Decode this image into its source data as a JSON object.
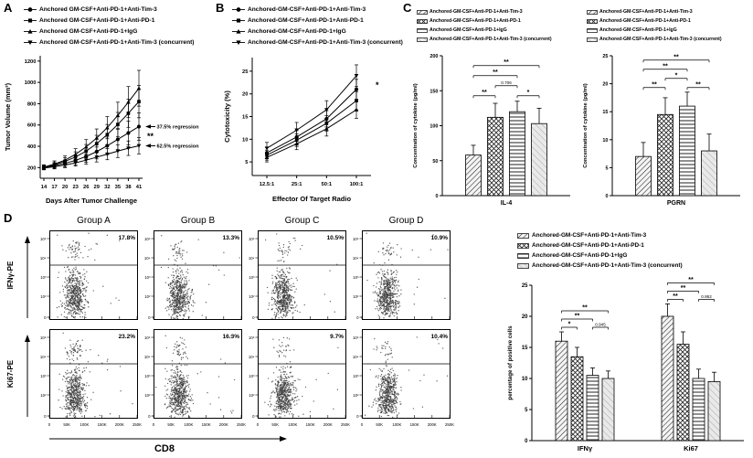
{
  "panels": {
    "a": {
      "label": "A"
    },
    "b": {
      "label": "B"
    },
    "c": {
      "label": "C"
    },
    "d": {
      "label": "D"
    }
  },
  "groups_a": [
    "Anchored GM-CSF+Anti-PD-1+Anti-Tim-3",
    "Anchored GM-CSF+Anti-PD-1+Anti-PD-1",
    "Anchored GM-CSF+Anti-PD-1+IgG",
    "Anchored GM-CSF+Anti-PD-1+Anti-Tim-3 (concurrent)"
  ],
  "groups": [
    "Anchored-GM-CSF+Anti-PD-1+Anti-Tim-3",
    "Anchored-GM-CSF+Anti-PD-1+Anti-PD-1",
    "Anchored-GM-CSF+Anti-PD-1+IgG",
    "Anchored-GM-CSF+Anti-PD-1+Anti-Tim-3 (concurrent)"
  ],
  "markers": [
    "circle",
    "square",
    "triangle-up",
    "triangle-down"
  ],
  "colors": {
    "ink": "#000000",
    "scatter_dot": "#3c3c3c",
    "background": "#ffffff"
  },
  "chart_data": [
    {
      "id": "tumor-volume",
      "type": "line",
      "title": "",
      "xlabel": "Days After Tumor Challenge",
      "ylabel": "Tumor Volume (mm³)",
      "x": [
        14,
        17,
        20,
        23,
        26,
        29,
        32,
        35,
        38,
        41
      ],
      "ylim": [
        100,
        1250
      ],
      "yticks": [
        200,
        400,
        600,
        800,
        1000,
        1200
      ],
      "series": [
        {
          "name": "Anchored GM-CSF+Anti-PD-1+Anti-Tim-3",
          "values": [
            200,
            218,
            240,
            268,
            305,
            350,
            405,
            465,
            525,
            585
          ],
          "errors": [
            18,
            24,
            32,
            42,
            55,
            68,
            82,
            96,
            112,
            128
          ]
        },
        {
          "name": "Anchored GM-CSF+Anti-PD-1+Anti-PD-1",
          "values": [
            200,
            226,
            258,
            300,
            355,
            425,
            510,
            605,
            710,
            820
          ],
          "errors": [
            20,
            27,
            36,
            48,
            62,
            78,
            95,
            113,
            132,
            152
          ]
        },
        {
          "name": "Anchored GM-CSF+Anti-PD-1+IgG",
          "values": [
            205,
            233,
            270,
            325,
            395,
            478,
            575,
            690,
            815,
            945
          ],
          "errors": [
            22,
            30,
            40,
            53,
            68,
            85,
            104,
            124,
            146,
            168
          ]
        },
        {
          "name": "Anchored GM-CSF+Anti-PD-1+Anti-Tim-3 (concurrent)",
          "values": [
            195,
            208,
            224,
            245,
            270,
            298,
            326,
            355,
            382,
            405
          ],
          "errors": [
            16,
            20,
            25,
            31,
            38,
            45,
            52,
            60,
            68,
            76
          ]
        }
      ],
      "annotations": [
        {
          "text": "37.5% regression",
          "arrow": true,
          "y": 585
        },
        {
          "text": "**",
          "arrow": false,
          "y": 495
        },
        {
          "text": "62.5% regression",
          "arrow": true,
          "y": 405
        }
      ]
    },
    {
      "id": "cytotoxicity",
      "type": "line",
      "title": "",
      "xlabel": "Effector Of Target Radio",
      "ylabel": "Cytotoxicity (%)",
      "x_categories": [
        "12.5:1",
        "25:1",
        "50:1",
        "100:1"
      ],
      "ylim": [
        2,
        28
      ],
      "yticks": [
        5,
        10,
        15,
        20,
        25
      ],
      "series": [
        {
          "name": "Anchored-GM-CSF+Anti-PD-1+Anti-Tim-3",
          "values": [
            7,
            10.5,
            14.5,
            21
          ],
          "errors": [
            1.2,
            1.5,
            1.8,
            2.2
          ]
        },
        {
          "name": "Anchored-GM-CSF+Anti-PD-1+Anti-PD-1",
          "values": [
            6.5,
            9.8,
            13.5,
            18.5
          ],
          "errors": [
            1.1,
            1.4,
            1.7,
            2
          ]
        },
        {
          "name": "Anchored-GM-CSF+Anti-PD-1+IgG",
          "values": [
            6,
            9,
            12.3,
            16.5
          ],
          "errors": [
            1,
            1.3,
            1.6,
            1.9
          ]
        },
        {
          "name": "Anchored-GM-CSF+Anti-PD-1+Anti-Tim-3 (concurrent)",
          "values": [
            8,
            12,
            16.5,
            24
          ],
          "errors": [
            1.3,
            1.7,
            2,
            2.4
          ]
        }
      ],
      "annotations": [
        {
          "text": "*",
          "arrow": false,
          "y": 22
        }
      ]
    },
    {
      "id": "cytokine-il4",
      "type": "bar",
      "title": "",
      "xlabel": "",
      "ylabel": "Concentration of cytokine (pg/ml)",
      "categories": [
        "IL-4"
      ],
      "ylim": [
        0,
        200
      ],
      "yticks": [
        0,
        50,
        100,
        150,
        200
      ],
      "series": [
        {
          "name": "Anchored-GM-CSF+Anti-PD-1+Anti-Tim-3",
          "values": [
            58
          ],
          "errors": [
            14
          ]
        },
        {
          "name": "Anchored-GM-CSF+Anti-PD-1+Anti-PD-1",
          "values": [
            112
          ],
          "errors": [
            20
          ]
        },
        {
          "name": "Anchored-GM-CSF+Anti-PD-1+IgG",
          "values": [
            120
          ],
          "errors": [
            15
          ]
        },
        {
          "name": "Anchored-GM-CSF+Anti-PD-1+Anti-Tim-3 (concurrent)",
          "values": [
            103
          ],
          "errors": [
            22
          ]
        }
      ],
      "sig": [
        {
          "cat": 0,
          "a": 0,
          "b": 1,
          "label": "**",
          "lv": 0
        },
        {
          "cat": 0,
          "a": 2,
          "b": 3,
          "label": "*",
          "lv": 0
        },
        {
          "cat": 0,
          "a": 1,
          "b": 2,
          "label": "0.706",
          "lv": 1
        },
        {
          "cat": 0,
          "a": 0,
          "b": 2,
          "label": "**",
          "lv": 2
        },
        {
          "cat": 0,
          "a": 0,
          "b": 3,
          "label": "**",
          "lv": 3
        }
      ]
    },
    {
      "id": "cytokine-pgrn",
      "type": "bar",
      "title": "",
      "xlabel": "",
      "ylabel": "Concentration of cytokine (pg/ml)",
      "categories": [
        "PGRN"
      ],
      "ylim": [
        0,
        25
      ],
      "yticks": [
        0,
        5,
        10,
        15,
        20,
        25
      ],
      "series": [
        {
          "name": "Anchored-GM-CSF+Anti-PD-1+Anti-Tim-3",
          "values": [
            7
          ],
          "errors": [
            2.5
          ]
        },
        {
          "name": "Anchored-GM-CSF+Anti-PD-1+Anti-PD-1",
          "values": [
            14.5
          ],
          "errors": [
            3
          ]
        },
        {
          "name": "Anchored-GM-CSF+Anti-PD-1+IgG",
          "values": [
            16
          ],
          "errors": [
            2.5
          ]
        },
        {
          "name": "Anchored-GM-CSF+Anti-PD-1+Anti-Tim-3 (concurrent)",
          "values": [
            8
          ],
          "errors": [
            3
          ]
        }
      ],
      "sig": [
        {
          "cat": 0,
          "a": 0,
          "b": 1,
          "label": "**",
          "lv": 0
        },
        {
          "cat": 0,
          "a": 2,
          "b": 3,
          "label": "**",
          "lv": 0
        },
        {
          "cat": 0,
          "a": 1,
          "b": 2,
          "label": "*",
          "lv": 1
        },
        {
          "cat": 0,
          "a": 0,
          "b": 2,
          "label": "**",
          "lv": 2
        },
        {
          "cat": 0,
          "a": 0,
          "b": 3,
          "label": "**",
          "lv": 3
        }
      ]
    },
    {
      "id": "flow-cytometry",
      "type": "scatter",
      "columns": [
        "Group A",
        "Group B",
        "Group C",
        "Group D"
      ],
      "rows": [
        {
          "ylabel": "IFNγ-PE",
          "percentages": [
            "17.8%",
            "13.3%",
            "10.5%",
            "10.9%"
          ]
        },
        {
          "ylabel": "Ki67-PE",
          "percentages": [
            "23.2%",
            "16.3%",
            "9.7%",
            "10.4%"
          ]
        }
      ],
      "xlabel": "CD8",
      "xticks": [
        "0",
        "50K",
        "100K",
        "150K",
        "200K",
        "250K"
      ],
      "yticks": [
        "0",
        "10²",
        "10³",
        "10⁴",
        "10⁵"
      ]
    },
    {
      "id": "positive-cells",
      "type": "bar",
      "title": "",
      "xlabel": "",
      "ylabel": "percentage of positive cells",
      "categories": [
        "IFNγ",
        "Ki67"
      ],
      "ylim": [
        0,
        25
      ],
      "yticks": [
        0,
        5,
        10,
        15,
        20,
        25
      ],
      "series": [
        {
          "name": "Anchored-GM-CSF+Anti-PD-1+Anti-Tim-3",
          "values": [
            16,
            20
          ],
          "errors": [
            1.5,
            2
          ]
        },
        {
          "name": "Anchored-GM-CSF+Anti-PD-1+Anti-PD-1",
          "values": [
            13.5,
            15.5
          ],
          "errors": [
            1.5,
            2
          ]
        },
        {
          "name": "Anchored-GM-CSF+Anti-PD-1+IgG",
          "values": [
            10.5,
            10
          ],
          "errors": [
            1.2,
            1.5
          ]
        },
        {
          "name": "Anchored-GM-CSF+Anti-PD-1+Anti-Tim-3 (concurrent)",
          "values": [
            10,
            9.5
          ],
          "errors": [
            1.2,
            1.5
          ]
        }
      ],
      "sig": [
        {
          "cat": 0,
          "a": 0,
          "b": 1,
          "label": "*",
          "lv": 0
        },
        {
          "cat": 0,
          "a": 2,
          "b": 3,
          "label": "0.945",
          "lv": 0
        },
        {
          "cat": 0,
          "a": 0,
          "b": 2,
          "label": "**",
          "lv": 1
        },
        {
          "cat": 0,
          "a": 0,
          "b": 3,
          "label": "**",
          "lv": 2
        },
        {
          "cat": 1,
          "a": 0,
          "b": 1,
          "label": "**",
          "lv": 0
        },
        {
          "cat": 1,
          "a": 2,
          "b": 3,
          "label": "0.952",
          "lv": 0
        },
        {
          "cat": 1,
          "a": 0,
          "b": 2,
          "label": "**",
          "lv": 1
        },
        {
          "cat": 1,
          "a": 0,
          "b": 3,
          "label": "**",
          "lv": 2
        }
      ]
    }
  ]
}
